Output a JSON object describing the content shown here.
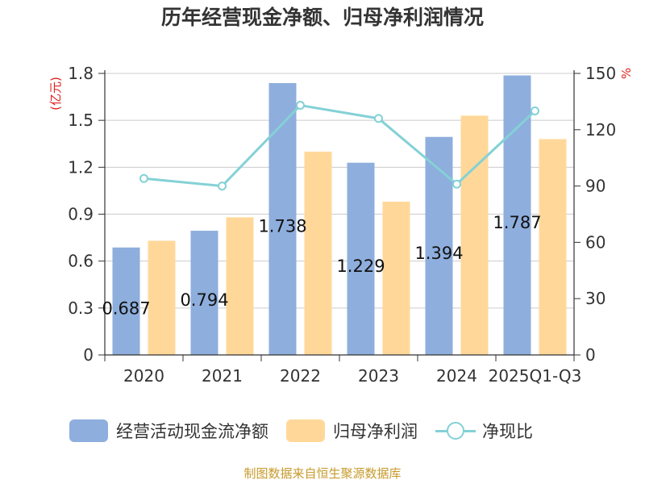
{
  "title": "历年经营现金净额、归母净利润情况",
  "source": "制图数据来自恒生聚源数据库",
  "chart_data": {
    "type": "bar",
    "categories": [
      "2020",
      "2021",
      "2022",
      "2023",
      "2024",
      "2025Q1-Q3"
    ],
    "series": [
      {
        "name": "经营活动现金流净额",
        "type": "bar",
        "axis": "left",
        "color": "#8eaedd",
        "values": [
          0.687,
          0.794,
          1.738,
          1.229,
          1.394,
          1.787
        ]
      },
      {
        "name": "归母净利润",
        "type": "bar",
        "axis": "left",
        "color": "#ffd899",
        "values": [
          0.73,
          0.88,
          1.3,
          0.98,
          1.53,
          1.38
        ]
      },
      {
        "name": "净现比",
        "type": "line",
        "axis": "right",
        "color": "#84d1d6",
        "values": [
          94,
          90,
          133,
          126,
          91,
          130
        ]
      }
    ],
    "data_labels": [
      "0.687",
      "0.794",
      "1.738",
      "1.229",
      "1.394",
      "1.787"
    ],
    "y_left": {
      "unit": "(亿元)",
      "min": 0,
      "max": 1.8,
      "ticks": [
        "0",
        "0.3",
        "0.6",
        "0.9",
        "1.2",
        "1.5",
        "1.8"
      ]
    },
    "y_right": {
      "unit": "%",
      "min": 0,
      "max": 150,
      "ticks": [
        "0",
        "30",
        "60",
        "90",
        "120",
        "150"
      ]
    },
    "grid": true,
    "legend": "bottom"
  }
}
